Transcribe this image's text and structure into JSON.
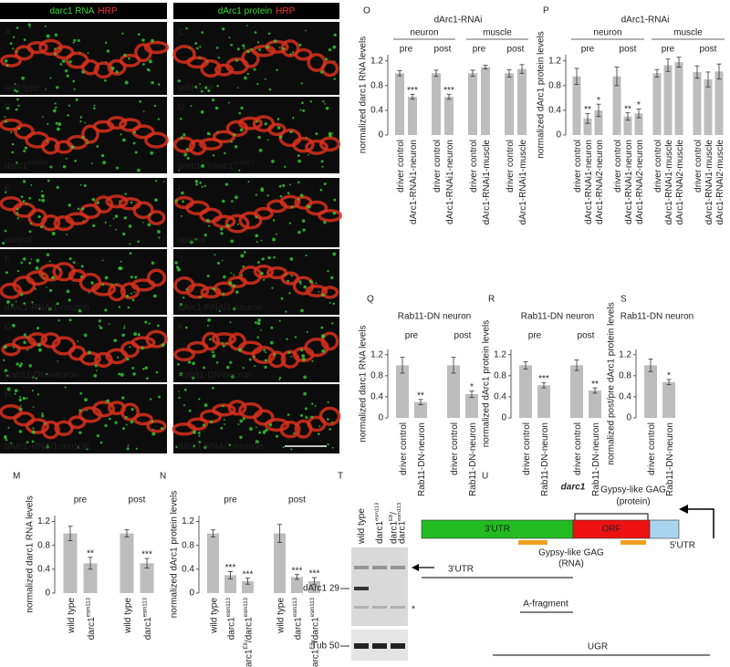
{
  "images": {
    "columns": [
      {
        "title": [
          {
            "text": "darc1 RNA",
            "color": "#33dd33"
          },
          {
            "text": "HRP",
            "color": "#ff3333"
          }
        ]
      },
      {
        "title": [
          {
            "text": "dArc1 protein",
            "color": "#33dd33"
          },
          {
            "text": "HRP",
            "color": "#ff3333"
          }
        ]
      }
    ],
    "panels": [
      {
        "letter": "A",
        "label": [
          "wild type"
        ]
      },
      {
        "letter": "B",
        "label": [
          "darc1",
          "esm113"
        ]
      },
      {
        "letter": "E",
        "label": [
          "control"
        ]
      },
      {
        "letter": "F",
        "label": [
          "dArc1-RNAi1-neuron"
        ]
      },
      {
        "letter": "G",
        "label": [
          "Rab11-DN-neuron"
        ]
      },
      {
        "letter": "H",
        "label": [
          "dArc1-RNAi1-muscle"
        ]
      },
      {
        "letter": "C",
        "label": [
          "wild type"
        ]
      },
      {
        "letter": "D",
        "label": [
          "darc1",
          "E8",
          "/darc1",
          "esm113"
        ]
      },
      {
        "letter": "I",
        "label": [
          "control"
        ]
      },
      {
        "letter": "J",
        "label": [
          "dArc1-RNAi1-neuron"
        ]
      },
      {
        "letter": "K",
        "label": [
          "Rab11-DN-neuron"
        ]
      },
      {
        "letter": "L",
        "label": [
          "dArc1-RNAi1-muscle"
        ]
      }
    ]
  },
  "chart_data": [
    {
      "type": "bar",
      "panel": "O",
      "title": "dArc1-RNAi",
      "ylabel": "normalized darc1 RNA levels",
      "ylim": [
        0,
        1.3
      ],
      "yticks": [
        0,
        0.4,
        0.8,
        1.2
      ],
      "color": "#bdbdbd",
      "groups": [
        {
          "label": "neuron",
          "sets": [
            {
              "label": "pre",
              "categories": [
                [
                  "driver control"
                ],
                [
                  "dArc1-RNAi1-neuron"
                ]
              ],
              "values": [
                1.0,
                0.62
              ],
              "errors": [
                0.04,
                0.04
              ],
              "stars": [
                null,
                "***"
              ]
            },
            {
              "label": "post",
              "categories": [
                [
                  "driver control"
                ],
                [
                  "dArc1-RNAi1-neuron"
                ]
              ],
              "values": [
                1.0,
                0.62
              ],
              "errors": [
                0.05,
                0.04
              ],
              "stars": [
                null,
                "***"
              ]
            }
          ]
        },
        {
          "label": "muscle",
          "sets": [
            {
              "label": "pre",
              "categories": [
                [
                  "driver control"
                ],
                [
                  "dArc1-RNAi1-muscle"
                ]
              ],
              "values": [
                1.0,
                1.1
              ],
              "errors": [
                0.05,
                0.03
              ],
              "stars": [
                null,
                null
              ]
            },
            {
              "label": "post",
              "categories": [
                [
                  "driver control"
                ],
                [
                  "dArc1-RNAi1-muscle"
                ]
              ],
              "values": [
                1.0,
                1.07
              ],
              "errors": [
                0.06,
                0.07
              ],
              "stars": [
                null,
                null
              ]
            }
          ]
        }
      ]
    },
    {
      "type": "bar",
      "panel": "P",
      "title": "dArc1-RNAi",
      "ylabel": "normalized dArc1 protein levels",
      "ylim": [
        0,
        1.3
      ],
      "yticks": [
        0,
        0.4,
        0.8,
        1.2
      ],
      "color": "#bdbdbd",
      "groups": [
        {
          "label": "neuron",
          "sets": [
            {
              "label": "pre",
              "categories": [
                [
                  "driver control"
                ],
                [
                  "dArc1-RNAi1-neuron"
                ],
                [
                  "dArc1-RNAi2-neuron"
                ]
              ],
              "values": [
                0.95,
                0.27,
                0.4
              ],
              "errors": [
                0.13,
                0.08,
                0.1
              ],
              "stars": [
                null,
                "**",
                "*"
              ]
            },
            {
              "label": "post",
              "categories": [
                [
                  "driver control"
                ],
                [
                  "dArc1-RNAi1-neuron"
                ],
                [
                  "dArc1-RNAi2-neuron"
                ]
              ],
              "values": [
                0.95,
                0.3,
                0.35
              ],
              "errors": [
                0.15,
                0.06,
                0.07
              ],
              "stars": [
                null,
                "**",
                "*"
              ]
            }
          ]
        },
        {
          "label": "muscle",
          "sets": [
            {
              "label": "pre",
              "categories": [
                [
                  "driver control"
                ],
                [
                  "dArc1-RNAi1-muscle"
                ],
                [
                  "dArc1-RNAi2-muscle"
                ]
              ],
              "values": [
                1.0,
                1.13,
                1.18
              ],
              "errors": [
                0.06,
                0.1,
                0.08
              ],
              "stars": [
                null,
                null,
                null
              ]
            },
            {
              "label": "post",
              "categories": [
                [
                  "driver control"
                ],
                [
                  "dArc1-RNAi1-muscle"
                ],
                [
                  "dArc1-RNAi2-muscle"
                ]
              ],
              "values": [
                1.02,
                0.9,
                1.03
              ],
              "errors": [
                0.1,
                0.12,
                0.12
              ],
              "stars": [
                null,
                null,
                null
              ]
            }
          ]
        }
      ]
    },
    {
      "type": "bar",
      "panel": "Q",
      "title": "Rab11-DN neuron",
      "ylabel": "normalized darc1 RNA levels",
      "ylim": [
        0,
        1.3
      ],
      "yticks": [
        0,
        0.4,
        0.8,
        1.2
      ],
      "color": "#bdbdbd",
      "groups": [
        {
          "sets": [
            {
              "label": "pre",
              "categories": [
                [
                  "driver control"
                ],
                [
                  "Rab11-DN-neuron"
                ]
              ],
              "values": [
                1.0,
                0.3
              ],
              "errors": [
                0.15,
                0.05
              ],
              "stars": [
                null,
                "**"
              ]
            },
            {
              "label": "post",
              "categories": [
                [
                  "driver control"
                ],
                [
                  "Rab11-DN-neuron"
                ]
              ],
              "values": [
                1.0,
                0.45
              ],
              "errors": [
                0.15,
                0.06
              ],
              "stars": [
                null,
                "*"
              ]
            }
          ]
        }
      ]
    },
    {
      "type": "bar",
      "panel": "R",
      "title": "Rab11-DN neuron",
      "ylabel": "normalized dArc1 protein levels",
      "ylim": [
        0,
        1.3
      ],
      "yticks": [
        0,
        0.4,
        0.8,
        1.2
      ],
      "color": "#bdbdbd",
      "groups": [
        {
          "sets": [
            {
              "label": "pre",
              "categories": [
                [
                  "driver control"
                ],
                [
                  "Rab11-DN-neuron"
                ]
              ],
              "values": [
                1.0,
                0.62
              ],
              "errors": [
                0.07,
                0.05
              ],
              "stars": [
                null,
                "***"
              ]
            },
            {
              "label": "post",
              "categories": [
                [
                  "driver control"
                ],
                [
                  "Rab11-DN-neuron"
                ]
              ],
              "values": [
                1.0,
                0.52
              ],
              "errors": [
                0.1,
                0.05
              ],
              "stars": [
                null,
                "**"
              ]
            }
          ]
        }
      ]
    },
    {
      "type": "bar",
      "panel": "S",
      "title": "Rab11-DN neuron",
      "ylabel": "normalized post/pre dArc1 protein levels",
      "ylim": [
        0,
        1.3
      ],
      "yticks": [
        0,
        0.4,
        0.8,
        1.2
      ],
      "color": "#bdbdbd",
      "groups": [
        {
          "sets": [
            {
              "categories": [
                [
                  "driver control"
                ],
                [
                  "Rab11-DN-neuron"
                ]
              ],
              "values": [
                1.0,
                0.68
              ],
              "errors": [
                0.12,
                0.05
              ],
              "stars": [
                null,
                "*"
              ]
            }
          ]
        }
      ]
    },
    {
      "type": "bar",
      "panel": "M",
      "ylabel": "normalized darc1 RNA levels",
      "ylim": [
        0,
        1.3
      ],
      "yticks": [
        0,
        0.4,
        0.8,
        1.2
      ],
      "color": "#bdbdbd",
      "groups": [
        {
          "sets": [
            {
              "label": "pre",
              "categories": [
                [
                  "wild type"
                ],
                [
                  "darc1",
                  "esm113"
                ]
              ],
              "values": [
                1.0,
                0.5
              ],
              "errors": [
                0.12,
                0.1
              ],
              "stars": [
                null,
                "**"
              ]
            },
            {
              "label": "post",
              "categories": [
                [
                  "wild type"
                ],
                [
                  "darc1",
                  "esm113"
                ]
              ],
              "values": [
                1.0,
                0.5
              ],
              "errors": [
                0.06,
                0.08
              ],
              "stars": [
                null,
                "***"
              ]
            }
          ]
        }
      ]
    },
    {
      "type": "bar",
      "panel": "N",
      "ylabel": "normalized dArc1 protein levels",
      "ylim": [
        0,
        1.3
      ],
      "yticks": [
        0,
        0.4,
        0.8,
        1.2
      ],
      "color": "#bdbdbd",
      "groups": [
        {
          "sets": [
            {
              "label": "pre",
              "categories": [
                [
                  "wild type"
                ],
                [
                  "darc1",
                  "esm113"
                ],
                [
                  "darc1",
                  "E8",
                  "/darc1",
                  "esm113"
                ]
              ],
              "values": [
                1.0,
                0.3,
                0.2
              ],
              "errors": [
                0.06,
                0.06,
                0.05
              ],
              "stars": [
                null,
                "***",
                "***"
              ]
            },
            {
              "label": "post",
              "categories": [
                [
                  "wild type"
                ],
                [
                  "darc1",
                  "esm113"
                ],
                [
                  "darc1",
                  "E8",
                  "/darc1",
                  "esm113"
                ]
              ],
              "values": [
                1.0,
                0.27,
                0.2
              ],
              "errors": [
                0.15,
                0.04,
                0.06
              ],
              "stars": [
                null,
                "***",
                "***"
              ]
            }
          ]
        }
      ]
    }
  ],
  "blot": {
    "panel": "T",
    "lanes": [
      [
        [
          "wild type"
        ]
      ],
      [
        [
          "darc1",
          "esm113"
        ]
      ],
      [
        [
          "darc1",
          "E8",
          "/"
        ],
        [
          "darc1",
          "esm113"
        ]
      ]
    ],
    "markers": [
      "dArc1 29",
      "Tub 50"
    ],
    "asterisk": "*"
  },
  "gene": {
    "panel": "U",
    "title": "darc1",
    "segments": [
      "3'UTR",
      "ORF",
      "5'UTR"
    ],
    "gag_protein": [
      "Gypsy-like GAG",
      "(protein)"
    ],
    "gag_rna": [
      "Gypsy-like GAG",
      "(RNA)"
    ],
    "fragments": [
      "3'UTR",
      "A-fragment",
      "UGR"
    ]
  }
}
